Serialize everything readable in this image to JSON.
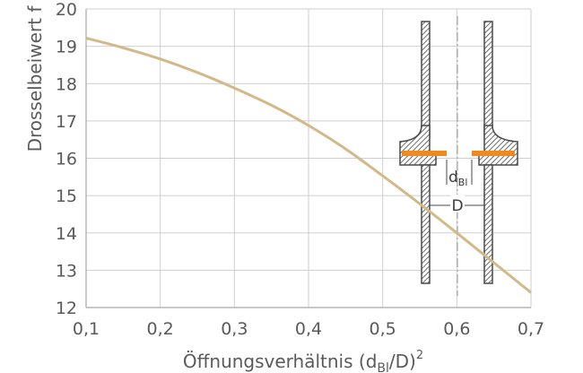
{
  "chart_data": {
    "type": "line",
    "xlabel": "Öffnungsverhältnis (d",
    "xlabel_sub": "Bl",
    "xlabel_rest": "/D)",
    "xlabel_sup": "2",
    "ylabel": "Drosselbeiwert f",
    "xlim": [
      0.1,
      0.7
    ],
    "ylim": [
      12,
      20
    ],
    "x_ticks": [
      "0,1",
      "0,2",
      "0,3",
      "0,4",
      "0,5",
      "0,6",
      "0,7"
    ],
    "y_ticks": [
      "12",
      "13",
      "14",
      "15",
      "16",
      "17",
      "18",
      "19",
      "20"
    ],
    "grid": true,
    "series": [
      {
        "color": "#d2b98a",
        "x": [
          0.1,
          0.15,
          0.2,
          0.25,
          0.3,
          0.35,
          0.4,
          0.45,
          0.5,
          0.55,
          0.6,
          0.65,
          0.7
        ],
        "y": [
          19.22,
          18.96,
          18.66,
          18.3,
          17.88,
          17.42,
          16.88,
          16.25,
          15.53,
          14.78,
          14.0,
          13.2,
          12.4
        ]
      }
    ]
  },
  "inset": {
    "label_dbl": "d",
    "label_dbl_sub": "Bl",
    "label_d": "D",
    "pipe_color": "#4a4a4a",
    "plate_color": "#f08a1c"
  }
}
